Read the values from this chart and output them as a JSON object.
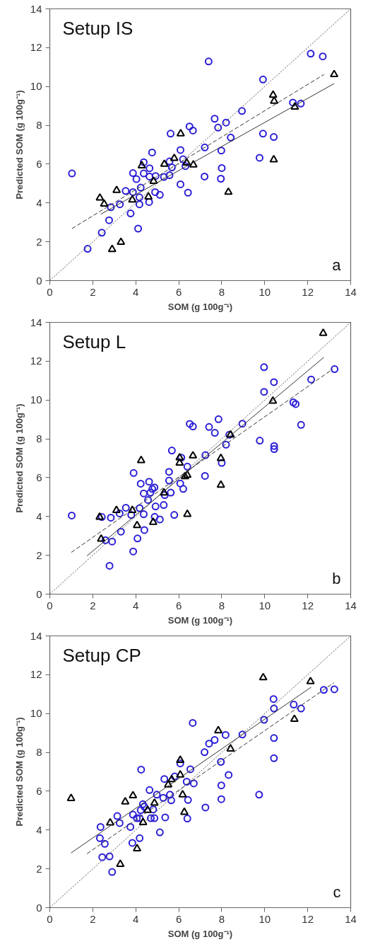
{
  "chart_data": [
    {
      "type": "scatter",
      "title": "Setup IS",
      "xlabel": "SOM (g 100g⁻¹)",
      "ylabel": "Predicted SOM (g 100g⁻¹)",
      "annotations": [
        "a"
      ],
      "xlim": [
        0,
        14
      ],
      "ylim": [
        0,
        14
      ],
      "xticks": [
        0,
        2,
        4,
        6,
        8,
        10,
        12,
        14
      ],
      "yticks": [
        0,
        2,
        4,
        6,
        8,
        10,
        12,
        14
      ],
      "grid": false,
      "series": [
        {
          "marker": "circle",
          "color": "#2b1fd6",
          "x": [
            1.03,
            1.76,
            2.42,
            2.76,
            2.84,
            3.26,
            3.53,
            3.76,
            3.87,
            3.87,
            4.03,
            4.11,
            4.17,
            4.17,
            4.23,
            4.37,
            4.37,
            4.64,
            4.64,
            4.62,
            4.76,
            4.92,
            4.9,
            5.12,
            5.31,
            5.57,
            5.57,
            5.62,
            5.68,
            6.08,
            6.08,
            6.2,
            6.31,
            6.43,
            6.5,
            6.66,
            7.21,
            7.2,
            7.39,
            7.67,
            7.83,
            7.98,
            8.0,
            7.96,
            8.2,
            8.42,
            8.94,
            9.76,
            9.92,
            9.92,
            10.42,
            11.31,
            11.68,
            12.14,
            12.7
          ],
          "values": [
            5.52,
            1.64,
            2.47,
            3.11,
            3.78,
            3.93,
            4.62,
            3.46,
            4.56,
            5.54,
            5.23,
            2.68,
            3.93,
            4.29,
            4.79,
            6.1,
            5.52,
            5.79,
            5.36,
            4.05,
            6.6,
            5.39,
            4.56,
            4.42,
            5.34,
            5.43,
            6.14,
            7.57,
            5.83,
            4.96,
            6.73,
            6.25,
            5.9,
            4.53,
            7.94,
            7.73,
            6.86,
            5.36,
            11.29,
            8.34,
            7.88,
            6.7,
            5.8,
            5.25,
            8.14,
            7.37,
            8.74,
            6.33,
            7.57,
            10.36,
            7.4,
            9.17,
            9.12,
            11.69,
            11.55
          ]
        },
        {
          "marker": "triangle",
          "color": "#000000",
          "x": [
            2.33,
            2.53,
            3.11,
            2.9,
            3.31,
            3.84,
            4.28,
            4.59,
            4.83,
            5.33,
            5.79,
            6.09,
            6.37,
            6.68,
            8.31,
            10.39,
            10.44,
            10.42,
            11.4,
            13.23
          ],
          "values": [
            4.26,
            3.95,
            4.65,
            1.61,
            1.98,
            4.16,
            5.92,
            4.32,
            5.12,
            6.0,
            6.3,
            7.57,
            6.07,
            5.97,
            4.56,
            9.56,
            9.25,
            6.23,
            8.95,
            10.62
          ]
        },
        {
          "type": "line",
          "line_style": "dotted",
          "color": "#555555",
          "x": [
            0,
            14
          ],
          "values": [
            0,
            14
          ]
        },
        {
          "type": "line",
          "line_style": "dashed",
          "color": "#333333",
          "x": [
            1.03,
            12.76
          ],
          "values": [
            2.68,
            10.62
          ]
        },
        {
          "type": "line",
          "line_style": "solid",
          "color": "#333333",
          "x": [
            2.37,
            13.23
          ],
          "values": [
            3.42,
            10.15
          ]
        }
      ]
    },
    {
      "type": "scatter",
      "title": "Setup L",
      "xlabel": "SOM (g 100g⁻¹)",
      "ylabel": "Predicted SOM (g 100g⁻¹)",
      "annotations": [
        "b"
      ],
      "xlim": [
        0,
        14
      ],
      "ylim": [
        0,
        14
      ],
      "xticks": [
        0,
        2,
        4,
        6,
        8,
        10,
        12,
        14
      ],
      "yticks": [
        0,
        2,
        4,
        6,
        8,
        10,
        12,
        14
      ],
      "grid": false,
      "series": [
        {
          "marker": "circle",
          "color": "#2b1fd6",
          "x": [
            1.02,
            2.78,
            2.42,
            2.59,
            2.9,
            2.84,
            3.25,
            3.31,
            3.54,
            3.79,
            3.88,
            3.9,
            4.08,
            4.18,
            4.23,
            4.37,
            4.37,
            4.4,
            4.57,
            4.62,
            4.68,
            4.77,
            4.87,
            4.92,
            4.88,
            5.12,
            5.3,
            5.35,
            5.55,
            5.55,
            5.63,
            5.68,
            5.79,
            6.07,
            6.12,
            6.21,
            6.4,
            6.51,
            6.66,
            7.22,
            7.24,
            7.41,
            7.68,
            7.85,
            8.0,
            8.2,
            8.35,
            8.96,
            9.77,
            9.97,
            9.97,
            10.43,
            10.44,
            10.44,
            11.33,
            11.44,
            11.69,
            12.16,
            13.25
          ],
          "values": [
            4.05,
            1.46,
            3.97,
            2.78,
            2.71,
            3.94,
            4.16,
            3.22,
            4.45,
            4.08,
            2.2,
            6.24,
            2.87,
            4.43,
            5.69,
            5.19,
            4.12,
            3.3,
            4.85,
            5.79,
            5.23,
            5.42,
            5.5,
            4.52,
            3.98,
            3.85,
            4.59,
            5.1,
            6.3,
            5.85,
            5.23,
            7.4,
            4.08,
            5.7,
            7.03,
            5.42,
            6.57,
            8.77,
            8.64,
            6.09,
            7.16,
            8.61,
            8.31,
            9.01,
            6.76,
            7.7,
            8.21,
            8.78,
            7.91,
            11.69,
            10.42,
            10.92,
            7.63,
            7.47,
            9.88,
            9.79,
            8.72,
            11.06,
            11.59
          ]
        },
        {
          "marker": "triangle",
          "color": "#000000",
          "x": [
            2.32,
            2.39,
            3.1,
            3.84,
            4.06,
            4.25,
            4.81,
            5.31,
            6.04,
            6.04,
            6.29,
            6.4,
            6.4,
            6.66,
            7.96,
            7.96,
            8.41,
            10.38,
            12.72
          ],
          "values": [
            3.97,
            2.84,
            4.32,
            4.32,
            3.54,
            6.89,
            3.71,
            5.22,
            7.03,
            6.76,
            6.06,
            6.13,
            4.12,
            7.13,
            7.0,
            5.62,
            8.21,
            9.95,
            13.44
          ]
        },
        {
          "type": "line",
          "line_style": "dotted",
          "color": "#555555",
          "x": [
            0,
            14
          ],
          "values": [
            0,
            14
          ]
        },
        {
          "type": "line",
          "line_style": "dashed",
          "color": "#333333",
          "x": [
            1.0,
            13.16
          ],
          "values": [
            2.15,
            11.59
          ]
        },
        {
          "type": "line",
          "line_style": "solid",
          "color": "#333333",
          "x": [
            1.73,
            12.75
          ],
          "values": [
            1.97,
            12.2
          ]
        }
      ]
    },
    {
      "type": "scatter",
      "title": "Setup CP",
      "xlabel": "SOM (g 100g⁻¹)",
      "ylabel": "Predicted SOM (g 100g⁻¹)",
      "annotations": [
        "c"
      ],
      "xlim": [
        0,
        14
      ],
      "ylim": [
        0,
        14
      ],
      "xticks": [
        0,
        2,
        4,
        6,
        8,
        10,
        12,
        14
      ],
      "yticks": [
        0,
        2,
        4,
        6,
        8,
        10,
        12,
        14
      ],
      "grid": false,
      "series": [
        {
          "marker": "circle",
          "color": "#2b1fd6",
          "x": [
            2.36,
            2.33,
            2.56,
            2.44,
            2.78,
            2.9,
            3.14,
            3.25,
            3.75,
            3.84,
            3.87,
            4.05,
            4.18,
            4.18,
            4.23,
            4.25,
            4.33,
            4.4,
            4.64,
            4.7,
            4.81,
            4.87,
            4.98,
            5.12,
            5.28,
            5.33,
            5.37,
            5.59,
            5.65,
            5.81,
            6.07,
            6.37,
            6.43,
            6.4,
            6.54,
            6.65,
            6.7,
            7.2,
            7.24,
            7.41,
            7.67,
            7.96,
            7.98,
            7.98,
            8.18,
            8.32,
            8.96,
            9.74,
            9.97,
            10.41,
            10.43,
            10.43,
            10.43,
            11.35,
            11.69,
            12.75,
            13.24
          ],
          "values": [
            4.16,
            3.58,
            3.29,
            2.6,
            2.64,
            1.84,
            4.72,
            4.36,
            4.16,
            3.34,
            4.79,
            4.61,
            3.58,
            4.61,
            5.02,
            7.11,
            5.33,
            5.2,
            6.06,
            4.61,
            5.06,
            4.61,
            5.82,
            3.88,
            5.66,
            6.63,
            4.65,
            5.82,
            5.53,
            6.76,
            7.43,
            6.49,
            5.55,
            4.59,
            7.13,
            9.52,
            6.4,
            8.01,
            5.16,
            8.45,
            8.64,
            7.51,
            6.3,
            5.59,
            8.9,
            6.84,
            8.92,
            5.82,
            9.68,
            10.75,
            10.26,
            8.74,
            7.7,
            10.46,
            10.26,
            11.22,
            11.25
          ]
        },
        {
          "marker": "triangle",
          "color": "#000000",
          "x": [
            0.99,
            2.81,
            3.28,
            3.51,
            3.87,
            4.06,
            4.34,
            4.55,
            4.87,
            5.51,
            5.67,
            6.07,
            6.07,
            6.18,
            6.26,
            7.84,
            8.41,
            9.93,
            11.38,
            12.13
          ],
          "values": [
            5.63,
            4.37,
            2.24,
            5.46,
            5.77,
            3.04,
            4.39,
            5.02,
            5.39,
            6.33,
            6.6,
            7.6,
            6.84,
            5.82,
            4.92,
            9.12,
            8.18,
            11.85,
            9.71,
            11.65
          ]
        },
        {
          "type": "line",
          "line_style": "dotted",
          "color": "#555555",
          "x": [
            0,
            14
          ],
          "values": [
            0,
            14
          ]
        },
        {
          "type": "line",
          "line_style": "solid",
          "color": "#333333",
          "x": [
            0.99,
            12.16
          ],
          "values": [
            2.82,
            11.36
          ]
        },
        {
          "type": "line",
          "line_style": "dashed",
          "color": "#333333",
          "x": [
            1.73,
            13.22
          ],
          "values": [
            2.78,
            11.59
          ]
        }
      ]
    }
  ]
}
